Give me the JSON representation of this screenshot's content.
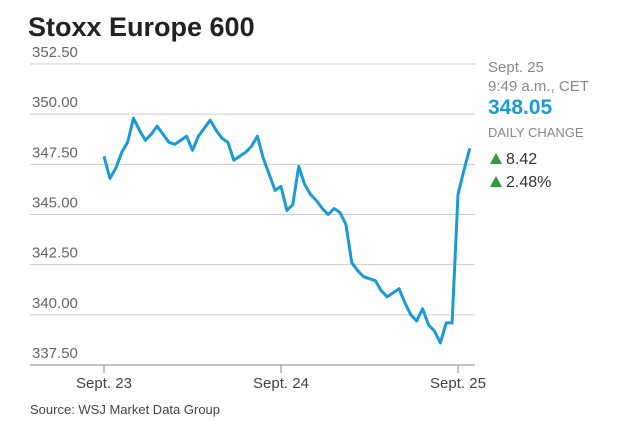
{
  "chart_data": {
    "type": "line",
    "title": "Stoxx Europe 600",
    "source": "Source: WSJ Market Data Group",
    "color": "#1a9bd7",
    "categories": [
      "Sept. 23",
      null,
      null,
      null,
      null,
      null,
      null,
      null,
      null,
      null,
      null,
      null,
      null,
      null,
      null,
      null,
      null,
      null,
      null,
      null,
      null,
      null,
      null,
      null,
      null,
      null,
      null,
      null,
      null,
      null,
      "Sept. 24",
      null,
      null,
      null,
      null,
      null,
      null,
      null,
      null,
      null,
      null,
      null,
      null,
      null,
      null,
      null,
      null,
      null,
      null,
      null,
      null,
      null,
      null,
      null,
      null,
      null,
      null,
      null,
      null,
      null,
      "Sept. 25",
      null,
      null
    ],
    "values": [
      347.9,
      346.8,
      347.3,
      348.1,
      348.6,
      349.8,
      349.2,
      348.7,
      349.0,
      349.4,
      349.0,
      348.6,
      348.5,
      348.7,
      348.9,
      348.2,
      348.9,
      349.3,
      349.7,
      349.2,
      348.8,
      348.6,
      347.7,
      347.9,
      348.1,
      348.4,
      348.9,
      347.8,
      347.0,
      346.2,
      346.4,
      345.2,
      345.5,
      347.4,
      346.5,
      346.0,
      345.7,
      345.3,
      345.0,
      345.3,
      345.1,
      344.5,
      342.6,
      342.2,
      341.9,
      341.8,
      341.7,
      341.2,
      340.9,
      341.1,
      341.3,
      340.6,
      340.0,
      339.7,
      340.3,
      339.5,
      339.2,
      338.6,
      339.6,
      339.6,
      346.0,
      347.2,
      348.3
    ],
    "ylim": [
      337.5,
      352.5
    ],
    "yticks": [
      {
        "value": 337.5,
        "label": "337.50"
      },
      {
        "value": 340,
        "label": "340.00"
      },
      {
        "value": 342.5,
        "label": "342.50"
      },
      {
        "value": 345,
        "label": "345.00"
      },
      {
        "value": 347.5,
        "label": "347.50"
      },
      {
        "value": 350,
        "label": "350.00"
      },
      {
        "value": 352.5,
        "label": "352.50"
      }
    ],
    "grid": true,
    "info": {
      "date": "Sept. 25",
      "time": "9:49 a.m., CET",
      "last": 348.05,
      "change_label": "DAILY CHANGE",
      "change": 8.42,
      "change_pct": "2.48%"
    }
  }
}
